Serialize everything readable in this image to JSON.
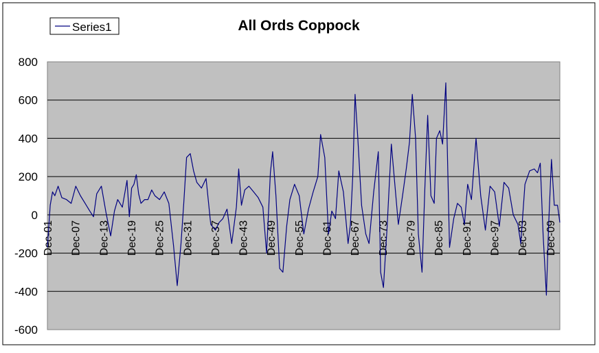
{
  "chart_data": {
    "type": "line",
    "title": "All Ords Coppock",
    "xlabel": "",
    "ylabel": "",
    "ylim": [
      -600,
      800
    ],
    "yticks": [
      800,
      600,
      400,
      200,
      0,
      -200,
      -400,
      -600
    ],
    "x_tick_labels": [
      "Dec-01",
      "Dec-07",
      "Dec-13",
      "Dec-19",
      "Dec-25",
      "Dec-31",
      "Dec-37",
      "Dec-43",
      "Dec-49",
      "Dec-55",
      "Dec-61",
      "Dec-67",
      "Dec-73",
      "Dec-79",
      "Dec-85",
      "Dec-91",
      "Dec-97",
      "Dec-03",
      "Dec-09"
    ],
    "grid": true,
    "legend_position": "top-left",
    "plot_background": "#C0C0C0",
    "series_color": "#000080",
    "series": [
      {
        "name": "Series1",
        "x": [
          1901.9,
          1902.5,
          1903.0,
          1903.5,
          1904.2,
          1905.0,
          1906.0,
          1907.0,
          1908.0,
          1909.0,
          1910.0,
          1911.0,
          1911.8,
          1912.5,
          1913.5,
          1914.5,
          1915.5,
          1916.3,
          1917.0,
          1918.0,
          1919.0,
          1919.5,
          1920.0,
          1920.5,
          1921.0,
          1921.5,
          1922.0,
          1922.8,
          1923.5,
          1924.3,
          1925.0,
          1926.0,
          1927.0,
          1928.0,
          1929.0,
          1929.8,
          1930.6,
          1931.2,
          1931.8,
          1932.6,
          1933.3,
          1934.0,
          1935.0,
          1936.0,
          1937.0,
          1938.0,
          1938.8,
          1939.6,
          1940.5,
          1941.5,
          1942.5,
          1943.0,
          1943.6,
          1944.3,
          1945.2,
          1946.2,
          1947.2,
          1948.2,
          1949.0,
          1949.8,
          1950.3,
          1951.0,
          1951.8,
          1952.5,
          1953.3,
          1954.0,
          1955.0,
          1956.0,
          1957.0,
          1958.0,
          1959.0,
          1960.0,
          1960.6,
          1961.5,
          1962.3,
          1963.0,
          1963.8,
          1964.5,
          1965.5,
          1966.5,
          1967.0,
          1967.5,
          1968.0,
          1968.6,
          1969.4,
          1970.3,
          1971.0,
          1972.0,
          1973.0,
          1973.5,
          1974.1,
          1974.9,
          1975.8,
          1976.4,
          1977.3,
          1978.2,
          1979.0,
          1979.7,
          1980.3,
          1981.0,
          1981.6,
          1982.4,
          1983.0,
          1983.6,
          1984.3,
          1985.0,
          1985.5,
          1986.2,
          1986.8,
          1987.5,
          1988.3,
          1989.2,
          1990.0,
          1990.8,
          1991.5,
          1992.2,
          1993.0,
          1994.0,
          1995.0,
          1996.0,
          1997.0,
          1998.0,
          1999.0,
          2000.0,
          2001.0,
          2002.0,
          2003.0,
          2003.6,
          2004.5,
          2005.5,
          2006.5,
          2007.2,
          2007.8,
          2008.4,
          2009.1,
          2009.6,
          2010.2,
          2010.8,
          2011.5,
          2012.0
        ],
        "values": [
          -170,
          50,
          120,
          100,
          150,
          90,
          80,
          60,
          150,
          100,
          60,
          20,
          -10,
          110,
          150,
          10,
          -110,
          20,
          80,
          40,
          180,
          -10,
          140,
          160,
          210,
          110,
          60,
          80,
          80,
          130,
          100,
          80,
          120,
          60,
          -160,
          -370,
          -150,
          60,
          300,
          320,
          230,
          170,
          140,
          190,
          -50,
          -80,
          -40,
          -20,
          30,
          -150,
          40,
          240,
          50,
          130,
          150,
          120,
          90,
          40,
          -200,
          220,
          330,
          100,
          -280,
          -300,
          -60,
          80,
          160,
          100,
          -100,
          30,
          120,
          200,
          420,
          300,
          -100,
          20,
          -20,
          230,
          120,
          -150,
          -50,
          200,
          630,
          400,
          50,
          -100,
          -150,
          120,
          330,
          -300,
          -380,
          -60,
          370,
          200,
          -50,
          100,
          240,
          380,
          630,
          400,
          -100,
          -300,
          140,
          520,
          100,
          60,
          400,
          440,
          370,
          690,
          -170,
          -20,
          60,
          40,
          -50,
          160,
          80,
          400,
          100,
          -80,
          150,
          120,
          -60,
          170,
          140,
          0,
          -50,
          -150,
          160,
          230,
          240,
          220,
          270,
          -100,
          -420,
          -50,
          290,
          50,
          50,
          -40
        ]
      }
    ]
  }
}
